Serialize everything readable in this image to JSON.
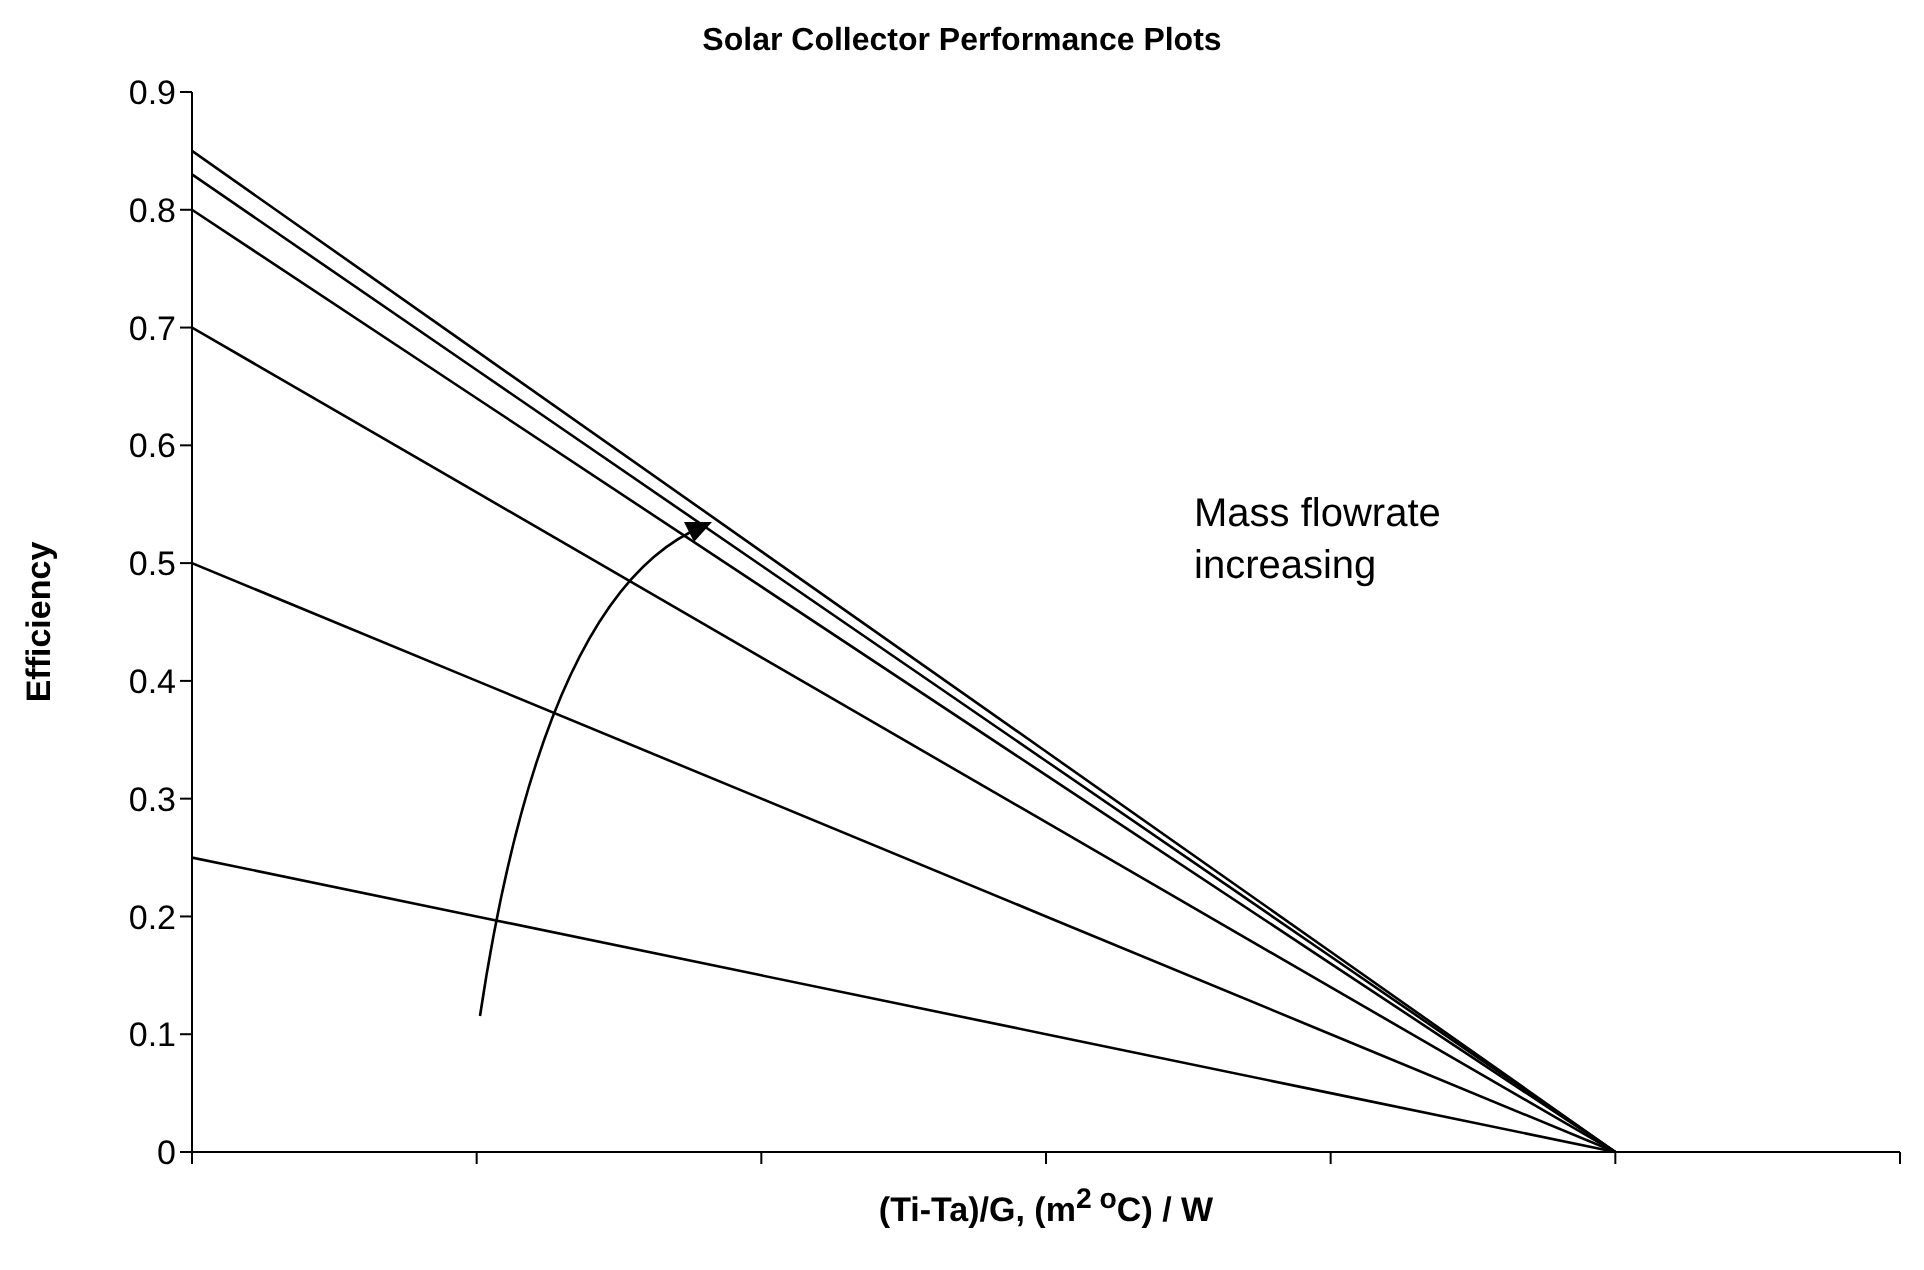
{
  "chart_data": {
    "type": "line",
    "title": "Solar Collector Performance Plots",
    "xlabel": "(Ti-Ta)/G,  (m$^{2 }$$^{o}$C) / W",
    "ylabel": "Efficiency",
    "categories": [
      null,
      null,
      null,
      null,
      null,
      null,
      null
    ],
    "series": [
      {
        "color": "#000000",
        "values": [
          0.85,
          0.68,
          0.51,
          0.34,
          0.17,
          0,
          null
        ]
      },
      {
        "color": "#000000",
        "values": [
          0.83,
          0.664,
          0.498,
          0.332,
          0.166,
          0,
          null
        ]
      },
      {
        "color": "#000000",
        "values": [
          0.8,
          0.64,
          0.48,
          0.32,
          0.16,
          0,
          null
        ]
      },
      {
        "color": "#000000",
        "values": [
          0.7,
          0.56,
          0.42,
          0.28,
          0.14,
          0,
          null
        ]
      },
      {
        "color": "#000000",
        "values": [
          0.5,
          0.4,
          0.3,
          0.2,
          0.1,
          0,
          null
        ]
      },
      {
        "color": "#000000",
        "values": [
          0.25,
          0.2,
          0.15,
          0.1,
          0.05,
          0,
          null
        ]
      }
    ],
    "ylim": [
      0,
      0.9
    ],
    "yticks": [
      0,
      0.1,
      0.2,
      0.3,
      0.4,
      0.5,
      0.6,
      0.7,
      0.8,
      0.9
    ],
    "grid": false,
    "legend": false,
    "marker": "none",
    "line_style": "solid",
    "annotations": [
      "Mass flowrate increasing"
    ]
  }
}
